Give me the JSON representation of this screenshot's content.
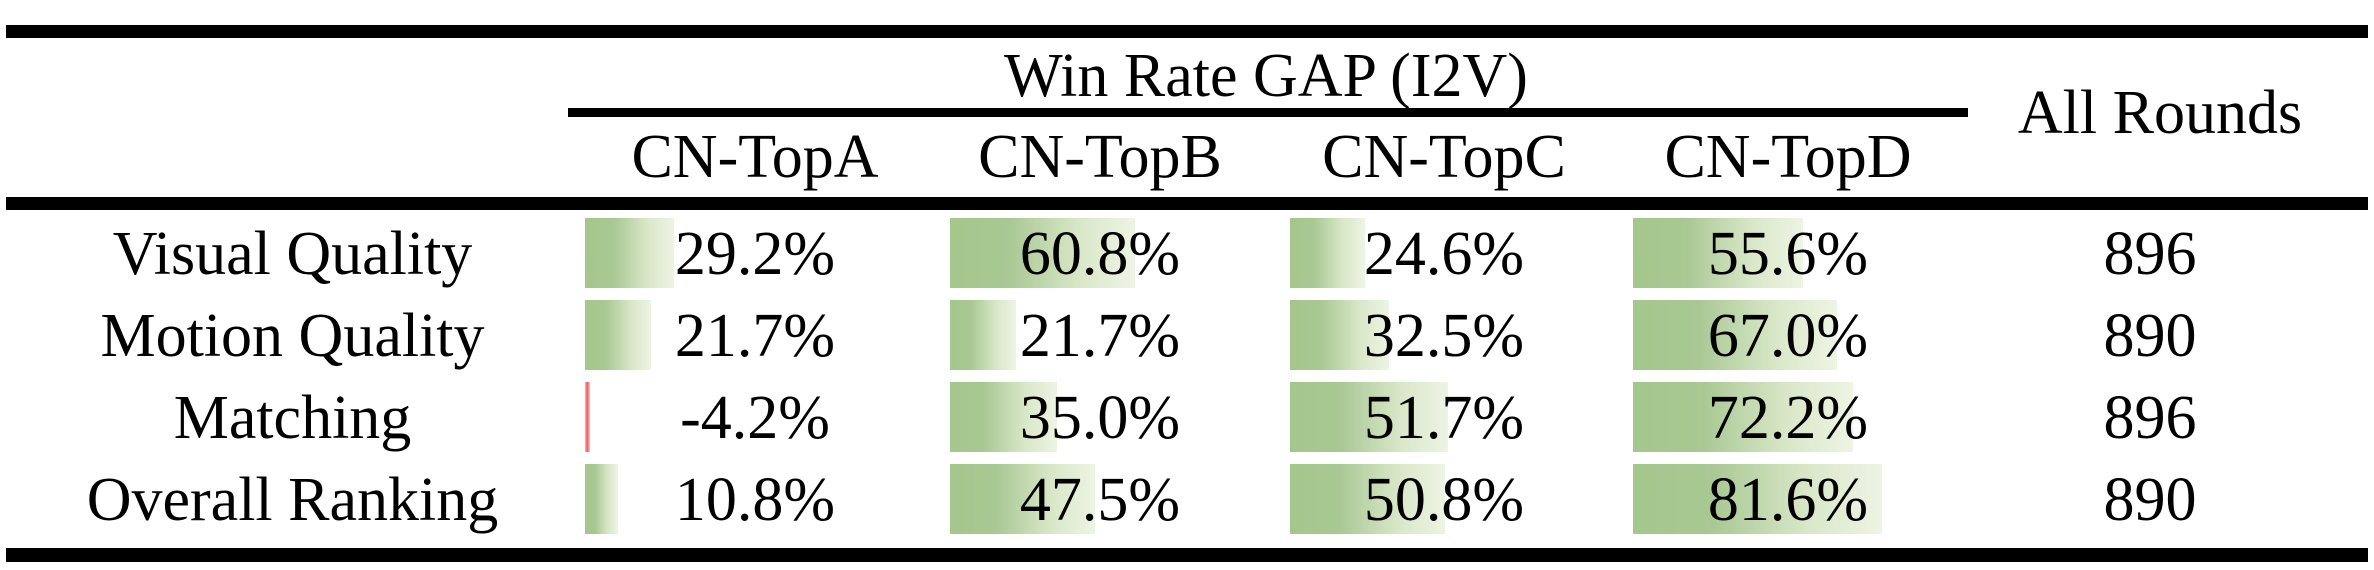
{
  "table": {
    "title": "Win Rate GAP (I2V)",
    "all_rounds_header": "All Rounds",
    "columns": [
      "CN-TopA",
      "CN-TopB",
      "CN-TopC",
      "CN-TopD"
    ],
    "rows": [
      {
        "label": "Visual Quality",
        "cells": [
          {
            "text": "29.2%",
            "value": 29.2
          },
          {
            "text": "60.8%",
            "value": 60.8
          },
          {
            "text": "24.6%",
            "value": 24.6
          },
          {
            "text": "55.6%",
            "value": 55.6
          }
        ],
        "all_rounds": "896"
      },
      {
        "label": "Motion Quality",
        "cells": [
          {
            "text": "21.7%",
            "value": 21.7
          },
          {
            "text": "21.7%",
            "value": 21.7
          },
          {
            "text": "32.5%",
            "value": 32.5
          },
          {
            "text": "67.0%",
            "value": 67.0
          }
        ],
        "all_rounds": "890"
      },
      {
        "label": "Matching",
        "cells": [
          {
            "text": "-4.2%",
            "value": -4.2
          },
          {
            "text": "35.0%",
            "value": 35.0
          },
          {
            "text": "51.7%",
            "value": 51.7
          },
          {
            "text": "72.2%",
            "value": 72.2
          }
        ],
        "all_rounds": "896"
      },
      {
        "label": "Overall Ranking",
        "cells": [
          {
            "text": "10.8%",
            "value": 10.8
          },
          {
            "text": "47.5%",
            "value": 47.5
          },
          {
            "text": "50.8%",
            "value": 50.8
          },
          {
            "text": "81.6%",
            "value": 81.6
          }
        ],
        "all_rounds": "890"
      }
    ]
  },
  "colors": {
    "bar_positive_green": "#a4c78c",
    "bar_positive_fade": "#eef4e4",
    "bar_negative_red": "#fa5a5a",
    "rule_black": "#000000",
    "text": "#000000",
    "background": "#ffffff"
  },
  "chart_data": {
    "type": "table",
    "title": "Win Rate GAP (I2V)",
    "row_labels": [
      "Visual Quality",
      "Motion Quality",
      "Matching",
      "Overall Ranking"
    ],
    "columns": [
      "CN-TopA",
      "CN-TopB",
      "CN-TopC",
      "CN-TopD",
      "All Rounds"
    ],
    "values": [
      [
        29.2,
        60.8,
        24.6,
        55.6,
        896
      ],
      [
        21.7,
        21.7,
        32.5,
        67.0,
        890
      ],
      [
        -4.2,
        35.0,
        51.7,
        72.2,
        896
      ],
      [
        10.8,
        47.5,
        50.8,
        81.6,
        890
      ]
    ],
    "units": "CN-Top columns are percentages; All Rounds is a count",
    "bar_style": "in-cell green gradient data bars proportional to value; negative value drawn as thin red bar",
    "legend_position": "none",
    "grid": false
  }
}
